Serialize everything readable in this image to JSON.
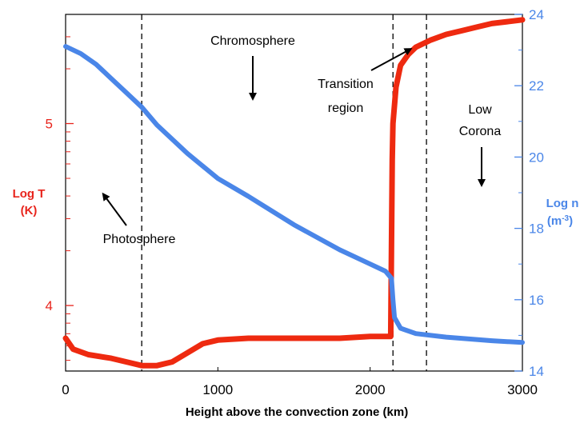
{
  "chart_data": {
    "type": "line",
    "xlabel": "Height above the convection zone (km)",
    "xlim": [
      0,
      3000
    ],
    "x_ticks": [
      0,
      1000,
      2000,
      3000
    ],
    "y_left": {
      "label_line1": "Log T",
      "label_line2": "(K)",
      "color": "#e8241c",
      "lim": [
        3.64,
        5.6
      ],
      "ticks": [
        4,
        5
      ],
      "scale": "log10"
    },
    "y_right": {
      "label_line1": "Log n",
      "label_line2_base": "(m",
      "label_line2_sup": "-3",
      "label_line2_end": ")",
      "color": "#4a86e8",
      "lim": [
        14,
        24
      ],
      "ticks": [
        14,
        16,
        18,
        20,
        22,
        24
      ],
      "scale": "log10"
    },
    "vlines": [
      500,
      2150,
      2370
    ],
    "series": [
      {
        "axis": "left",
        "color": "#ee2a10",
        "x": [
          0,
          50,
          150,
          300,
          400,
          500,
          600,
          700,
          800,
          900,
          1000,
          1200,
          1500,
          1800,
          2000,
          2135,
          2140,
          2145,
          2150,
          2170,
          2200,
          2250,
          2300,
          2400,
          2500,
          2600,
          2700,
          2800,
          2900,
          3000
        ],
        "y": [
          3.82,
          3.76,
          3.73,
          3.71,
          3.69,
          3.67,
          3.67,
          3.69,
          3.74,
          3.79,
          3.81,
          3.82,
          3.82,
          3.82,
          3.83,
          3.83,
          4.3,
          4.8,
          5.0,
          5.2,
          5.32,
          5.38,
          5.42,
          5.46,
          5.49,
          5.51,
          5.53,
          5.55,
          5.56,
          5.57
        ]
      },
      {
        "axis": "right",
        "color": "#4a86e8",
        "x": [
          0,
          100,
          200,
          300,
          400,
          500,
          600,
          800,
          1000,
          1200,
          1500,
          1800,
          2000,
          2100,
          2140,
          2150,
          2160,
          2200,
          2300,
          2500,
          2800,
          3000
        ],
        "y": [
          23.1,
          22.9,
          22.6,
          22.2,
          21.8,
          21.4,
          20.9,
          20.1,
          19.4,
          18.9,
          18.1,
          17.4,
          17.0,
          16.8,
          16.6,
          16.0,
          15.5,
          15.2,
          15.05,
          14.95,
          14.85,
          14.8
        ]
      }
    ],
    "annotations": [
      {
        "text": "Chromosphere"
      },
      {
        "text": "Transition"
      },
      {
        "text": "region"
      },
      {
        "text": "Low"
      },
      {
        "text": "Corona"
      },
      {
        "text": "Photosphere"
      }
    ]
  }
}
